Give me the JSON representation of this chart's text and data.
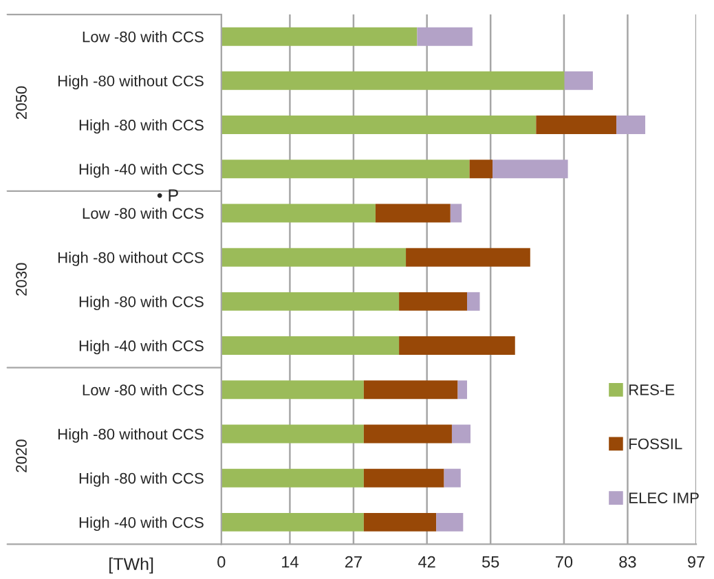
{
  "chart_data": {
    "type": "bar",
    "orientation": "horizontal",
    "stacked": true,
    "xlabel": "[TWh]",
    "categories": [
      "Low -80 with CCS",
      "High -80 without CCS",
      "High -80 with CCS",
      "High -40 with CCS",
      "Low -80 with CCS",
      "High -80 without CCS",
      "High -80 with CCS",
      "High -40 with CCS",
      "Low -80 with CCS",
      "High -80 without CCS",
      "High -80 with CCS",
      "High -40 with CCS"
    ],
    "series": [
      {
        "name": "RES-E",
        "color": "#9bbb59",
        "values": [
          40.0,
          70.1,
          64.3,
          50.7,
          31.5,
          37.7,
          36.3,
          36.3,
          29.1,
          29.1,
          29.1,
          29.1
        ]
      },
      {
        "name": "FOSSIL",
        "color": "#984807",
        "values": [
          0,
          0,
          16.4,
          4.7,
          15.3,
          25.4,
          13.9,
          23.7,
          19.2,
          18.0,
          16.4,
          14.8
        ]
      },
      {
        "name": "ELEC IMP",
        "color": "#b3a2c7",
        "values": [
          11.3,
          5.8,
          5.9,
          15.4,
          2.3,
          0,
          2.6,
          0,
          1.9,
          3.8,
          3.4,
          5.5
        ]
      }
    ],
    "xlim": [
      0,
      97
    ],
    "xticks": [
      0,
      14,
      27,
      42,
      55,
      70,
      83,
      97
    ],
    "grid": "x",
    "legend": "bottom right",
    "annotations": [
      "2050",
      "2030",
      "2020",
      "• P"
    ]
  }
}
